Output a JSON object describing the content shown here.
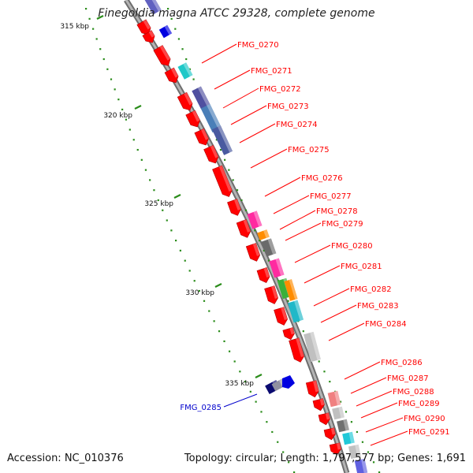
{
  "title": "Finegoldia magna ATCC 29328, complete genome",
  "footer": {
    "accession": "Accession: NC_010376",
    "topology": "Topology: circular; Length: 1,797,577 bp; Genes: 1,691"
  },
  "colors": {
    "backbone": "#8c8c8c",
    "forward_gene": "#ff0000",
    "reverse_label": "#0000cc",
    "tick": "#2a8c1a"
  },
  "ticks": [
    {
      "label": "315 kbp"
    },
    {
      "label": "320 kbp"
    },
    {
      "label": "325 kbp"
    },
    {
      "label": "330 kbp"
    },
    {
      "label": "335 kbp"
    }
  ],
  "gene_labels": [
    {
      "name": "FMG_0270",
      "strand": "+"
    },
    {
      "name": "FMG_0271",
      "strand": "+"
    },
    {
      "name": "FMG_0272",
      "strand": "+"
    },
    {
      "name": "FMG_0273",
      "strand": "+"
    },
    {
      "name": "FMG_0274",
      "strand": "+"
    },
    {
      "name": "FMG_0275",
      "strand": "+"
    },
    {
      "name": "FMG_0276",
      "strand": "+"
    },
    {
      "name": "FMG_0277",
      "strand": "+"
    },
    {
      "name": "FMG_0278",
      "strand": "+"
    },
    {
      "name": "FMG_0279",
      "strand": "+"
    },
    {
      "name": "FMG_0280",
      "strand": "+"
    },
    {
      "name": "FMG_0281",
      "strand": "+"
    },
    {
      "name": "FMG_0282",
      "strand": "+"
    },
    {
      "name": "FMG_0283",
      "strand": "+"
    },
    {
      "name": "FMG_0284",
      "strand": "+"
    },
    {
      "name": "FMG_0285",
      "strand": "-"
    },
    {
      "name": "FMG_0286",
      "strand": "+"
    },
    {
      "name": "FMG_0287",
      "strand": "+"
    },
    {
      "name": "FMG_0288",
      "strand": "+"
    },
    {
      "name": "FMG_0289",
      "strand": "+"
    },
    {
      "name": "FMG_0290",
      "strand": "+"
    },
    {
      "name": "FMG_0291",
      "strand": "+"
    }
  ]
}
